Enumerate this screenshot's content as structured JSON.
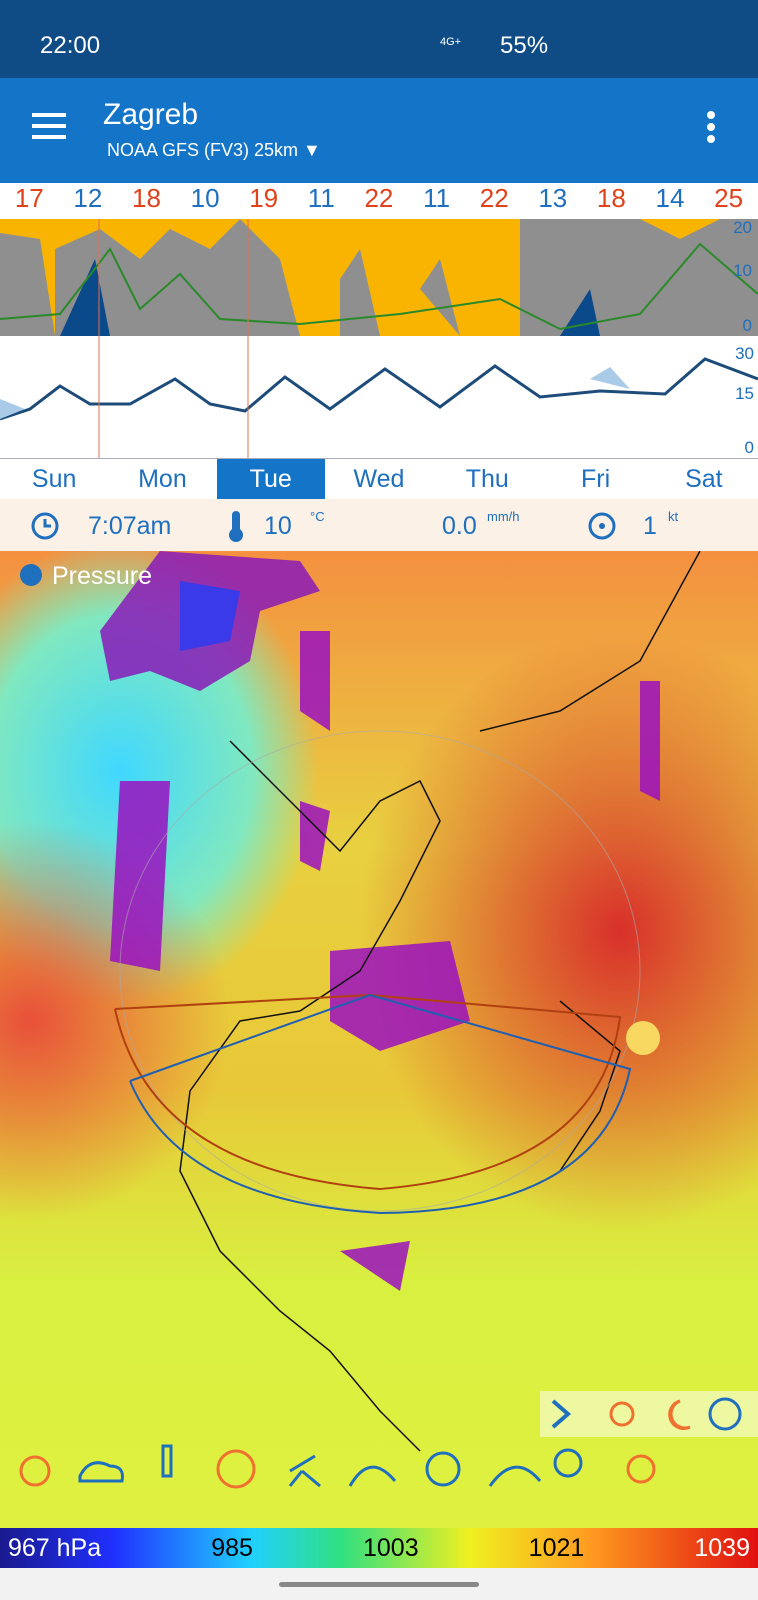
{
  "status": {
    "time": "22:00",
    "network": "4G+",
    "battery": "55%"
  },
  "header": {
    "title": "Zagreb",
    "model": "NOAA GFS (FV3) 25km"
  },
  "temperatures": [
    17,
    12,
    18,
    10,
    19,
    11,
    22,
    11,
    22,
    13,
    18,
    14,
    25
  ],
  "precip_axis": [
    "20",
    "10",
    "0"
  ],
  "temp_axis": [
    "30",
    "15",
    "0"
  ],
  "days": [
    "Sun",
    "Mon",
    "Tue",
    "Wed",
    "Thu",
    "Fri",
    "Sat"
  ],
  "selected_day": "Tue",
  "info": {
    "time": "7:07am",
    "temperature": "10",
    "temperature_unit": "°C",
    "rain": "0.0",
    "rain_unit": "mm/h",
    "wind": "1",
    "wind_unit": "kt"
  },
  "map": {
    "layer": "Pressure"
  },
  "legend": [
    "967 hPa",
    "985",
    "1003",
    "1021",
    "1039"
  ]
}
